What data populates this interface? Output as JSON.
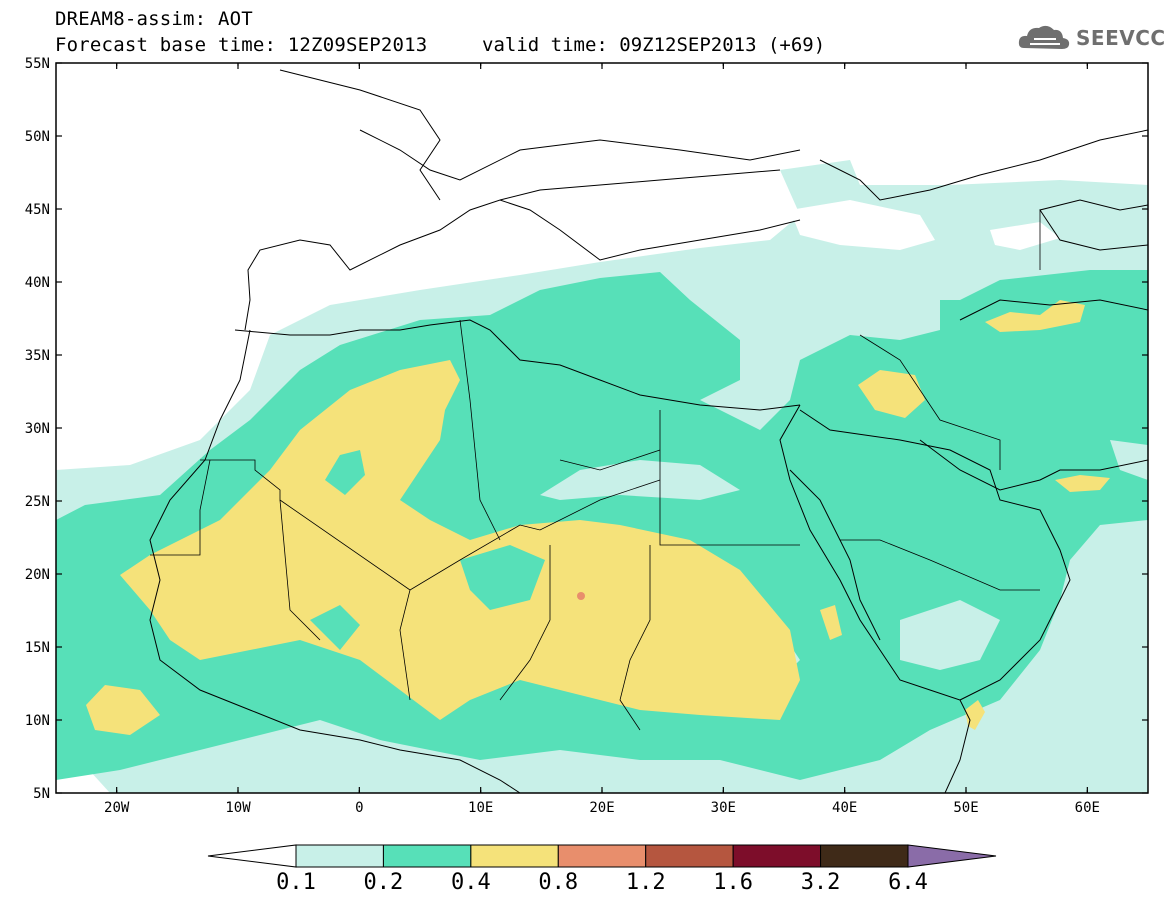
{
  "title": {
    "line1": "DREAM8-assim: AOT",
    "line2": "Forecast base time: 12Z09SEP2013",
    "valid": "valid time: 09Z12SEP2013 (+69)"
  },
  "logo": {
    "text": "SEEVCCC",
    "icon": "cloud-icon"
  },
  "map": {
    "lat_labels": [
      "55N",
      "50N",
      "45N",
      "40N",
      "35N",
      "30N",
      "25N",
      "20N",
      "15N",
      "10N",
      "5N"
    ],
    "lon_labels": [
      "20W",
      "10W",
      "0",
      "10E",
      "20E",
      "30E",
      "40E",
      "50E",
      "60E"
    ],
    "lon_range": [
      -25,
      65
    ],
    "lat_range": [
      5,
      55
    ]
  },
  "colorbar": {
    "labels": [
      "0.1",
      "0.2",
      "0.4",
      "0.8",
      "1.2",
      "1.6",
      "3.2",
      "6.4"
    ],
    "colors": [
      "#ffffff",
      "#c8f0e8",
      "#57e0b8",
      "#f5e27a",
      "#e88e6c",
      "#b5563f",
      "#7d0d2a",
      "#3f2a18",
      "#8a6ca8"
    ]
  }
}
